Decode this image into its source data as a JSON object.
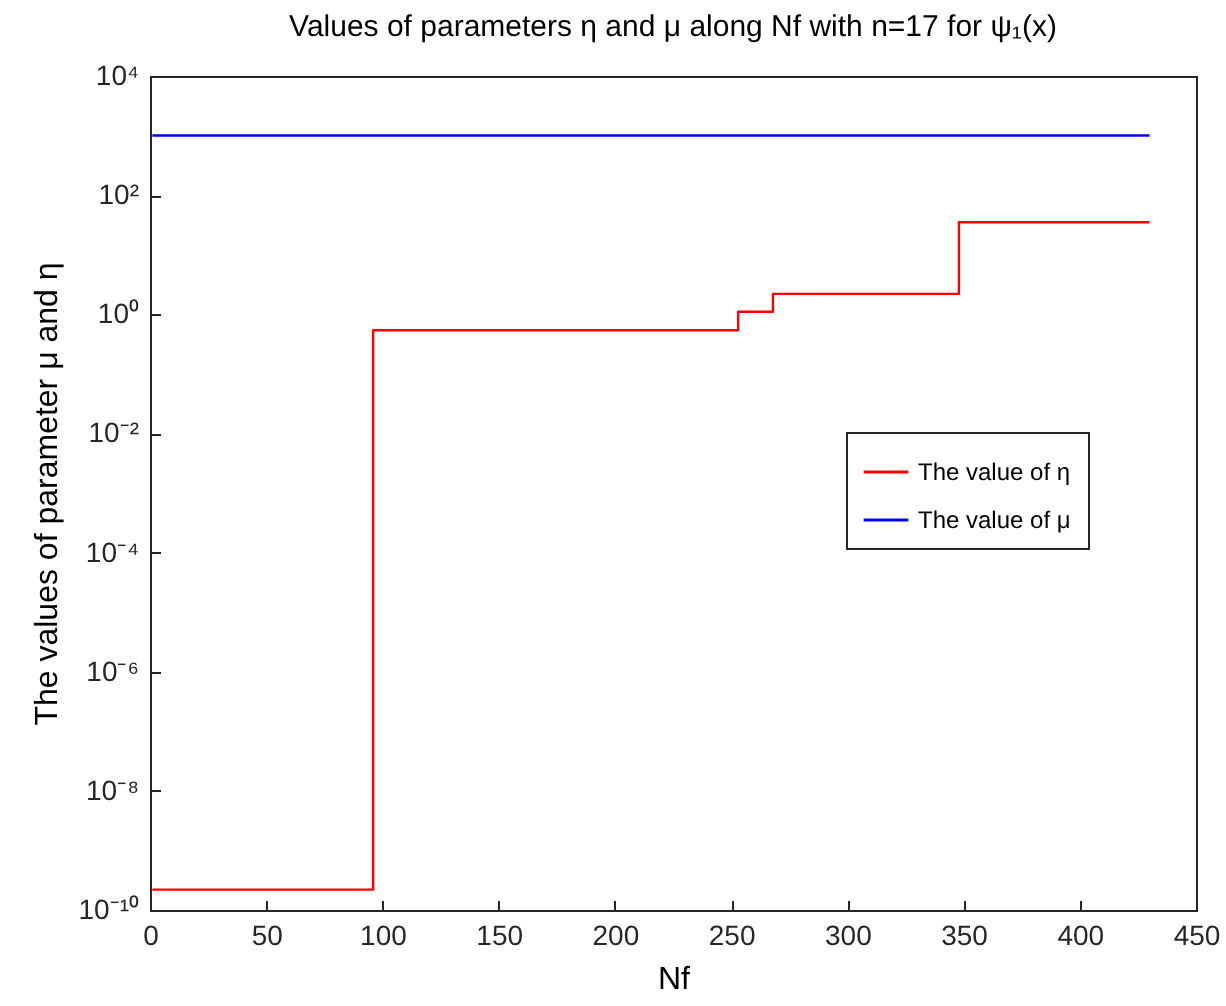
{
  "chart_data": {
    "type": "step",
    "title": "Values of parameters  η and μ along Nf with n=17 for  ψ₁(x)",
    "xlabel": "Nf",
    "ylabel": "The values of parameter  μ and η",
    "series": [
      {
        "name": "The value of η",
        "color": "#ff0000",
        "x": [
          1,
          96,
          253,
          268,
          348,
          430
        ],
        "values": [
          2.2e-10,
          0.54,
          1.1,
          2.2,
          35,
          35
        ]
      },
      {
        "name": "The value of μ",
        "color": "#0000ff",
        "x": [
          1,
          430
        ],
        "values": [
          1000,
          1000
        ]
      }
    ],
    "xlim": [
      0,
      450
    ],
    "xticks": [
      0,
      50,
      100,
      150,
      200,
      250,
      300,
      350,
      400,
      450
    ],
    "ylim": [
      1e-10,
      10000
    ],
    "yticks": [
      {
        "value": 1e-10,
        "label": "10⁻¹⁰"
      },
      {
        "value": 1e-08,
        "label": "10⁻⁸"
      },
      {
        "value": 1e-06,
        "label": "10⁻⁶"
      },
      {
        "value": 0.0001,
        "label": "10⁻⁴"
      },
      {
        "value": 0.01,
        "label": "10⁻²"
      },
      {
        "value": 1,
        "label": "10⁰"
      },
      {
        "value": 100,
        "label": "10²"
      },
      {
        "value": 10000,
        "label": "10⁴"
      }
    ],
    "log": "y",
    "grid": false,
    "legend": "right",
    "line_style": "solid",
    "marker": "none"
  }
}
